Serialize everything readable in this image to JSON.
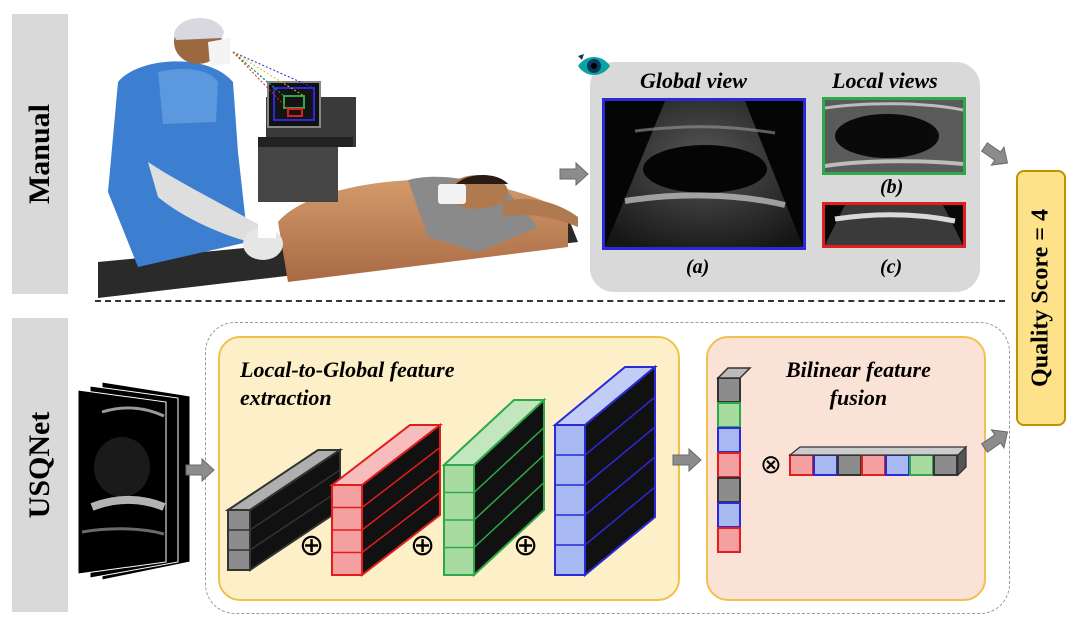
{
  "rows": {
    "manual_label": "Manual",
    "usqnet_label": "USQNet"
  },
  "views": {
    "global_title": "Global view",
    "local_title": "Local views",
    "caption_a": "(a)",
    "caption_b": "(b)",
    "caption_c": "(c)"
  },
  "score": {
    "label": "Quality Score = 4"
  },
  "modules": {
    "extraction_title_line1": "Local-to-Global feature",
    "extraction_title_line2": "extraction",
    "fusion_title_line1": "Bilinear feature",
    "fusion_title_line2": "fusion"
  },
  "symbols": {
    "oplus": "⊕",
    "otimes": "⊗"
  },
  "colors": {
    "gray_panel": "#d9d9d9",
    "blue_frame": "#2a2ad9",
    "green_frame": "#2ea84a",
    "red_frame": "#e01e1e",
    "extraction_fill": "#fdf0c8",
    "fusion_fill": "#fbe2d6",
    "score_fill": "#fde28a",
    "panel_border": "#f1c14d",
    "arrow_gray": "#8c8c8c"
  }
}
